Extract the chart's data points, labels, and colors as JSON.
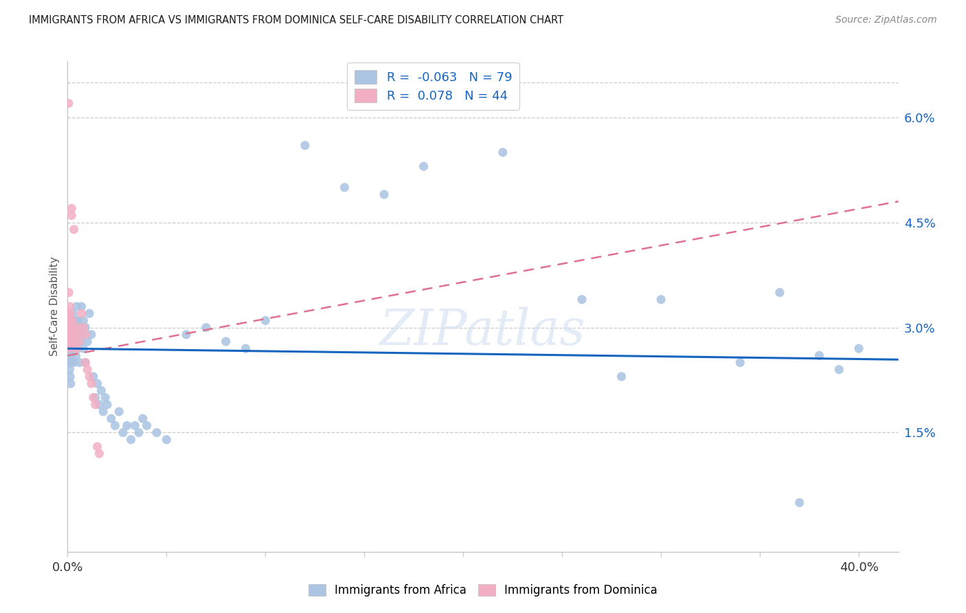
{
  "title": "IMMIGRANTS FROM AFRICA VS IMMIGRANTS FROM DOMINICA SELF-CARE DISABILITY CORRELATION CHART",
  "source": "Source: ZipAtlas.com",
  "ylabel": "Self-Care Disability",
  "ytick_labels": [
    "6.0%",
    "4.5%",
    "3.0%",
    "1.5%"
  ],
  "ytick_values": [
    0.06,
    0.045,
    0.03,
    0.015
  ],
  "xlim": [
    0.0,
    0.42
  ],
  "ylim": [
    -0.002,
    0.068
  ],
  "africa_R": -0.063,
  "africa_N": 79,
  "dominica_R": 0.078,
  "dominica_N": 44,
  "africa_color": "#aac4e2",
  "dominica_color": "#f2afc3",
  "africa_line_color": "#1565c0",
  "dominica_line_color": "#e07090",
  "legend_label_africa": "Immigrants from Africa",
  "legend_label_dominica": "Immigrants from Dominica",
  "watermark": "ZIPatlas",
  "africa_x": [
    0.0008,
    0.0009,
    0.001,
    0.001,
    0.0012,
    0.0013,
    0.0014,
    0.0015,
    0.0016,
    0.0017,
    0.0018,
    0.002,
    0.002,
    0.0022,
    0.0023,
    0.0025,
    0.0027,
    0.003,
    0.003,
    0.0032,
    0.0035,
    0.004,
    0.004,
    0.0042,
    0.0045,
    0.005,
    0.005,
    0.0052,
    0.006,
    0.006,
    0.0065,
    0.007,
    0.0075,
    0.008,
    0.008,
    0.009,
    0.009,
    0.01,
    0.011,
    0.012,
    0.013,
    0.014,
    0.015,
    0.016,
    0.017,
    0.018,
    0.019,
    0.02,
    0.022,
    0.024,
    0.026,
    0.028,
    0.03,
    0.032,
    0.034,
    0.036,
    0.038,
    0.04,
    0.045,
    0.05,
    0.06,
    0.07,
    0.08,
    0.09,
    0.1,
    0.12,
    0.14,
    0.16,
    0.18,
    0.22,
    0.26,
    0.3,
    0.34,
    0.36,
    0.38,
    0.39,
    0.4,
    0.37,
    0.28
  ],
  "africa_y": [
    0.028,
    0.026,
    0.025,
    0.024,
    0.027,
    0.023,
    0.029,
    0.022,
    0.026,
    0.028,
    0.03,
    0.027,
    0.025,
    0.031,
    0.029,
    0.028,
    0.032,
    0.027,
    0.025,
    0.029,
    0.03,
    0.031,
    0.028,
    0.026,
    0.033,
    0.029,
    0.027,
    0.031,
    0.025,
    0.03,
    0.028,
    0.033,
    0.029,
    0.027,
    0.031,
    0.025,
    0.03,
    0.028,
    0.032,
    0.029,
    0.023,
    0.02,
    0.022,
    0.019,
    0.021,
    0.018,
    0.02,
    0.019,
    0.017,
    0.016,
    0.018,
    0.015,
    0.016,
    0.014,
    0.016,
    0.015,
    0.017,
    0.016,
    0.015,
    0.014,
    0.029,
    0.03,
    0.028,
    0.027,
    0.031,
    0.056,
    0.05,
    0.049,
    0.053,
    0.055,
    0.034,
    0.034,
    0.025,
    0.035,
    0.026,
    0.024,
    0.027,
    0.005,
    0.023
  ],
  "dominica_x": [
    0.0005,
    0.0006,
    0.0007,
    0.0007,
    0.0008,
    0.0008,
    0.0009,
    0.0009,
    0.001,
    0.001,
    0.001,
    0.0011,
    0.0012,
    0.0013,
    0.0013,
    0.0014,
    0.0015,
    0.0016,
    0.0017,
    0.0018,
    0.002,
    0.002,
    0.0022,
    0.0025,
    0.003,
    0.003,
    0.0032,
    0.004,
    0.004,
    0.0045,
    0.005,
    0.005,
    0.006,
    0.007,
    0.008,
    0.009,
    0.009,
    0.01,
    0.011,
    0.012,
    0.013,
    0.014,
    0.015,
    0.016
  ],
  "dominica_y": [
    0.062,
    0.035,
    0.032,
    0.03,
    0.029,
    0.028,
    0.031,
    0.03,
    0.029,
    0.028,
    0.027,
    0.033,
    0.032,
    0.031,
    0.03,
    0.029,
    0.031,
    0.03,
    0.029,
    0.028,
    0.047,
    0.046,
    0.031,
    0.03,
    0.029,
    0.028,
    0.044,
    0.029,
    0.028,
    0.027,
    0.03,
    0.029,
    0.028,
    0.032,
    0.03,
    0.029,
    0.025,
    0.024,
    0.023,
    0.022,
    0.02,
    0.019,
    0.013,
    0.012
  ]
}
